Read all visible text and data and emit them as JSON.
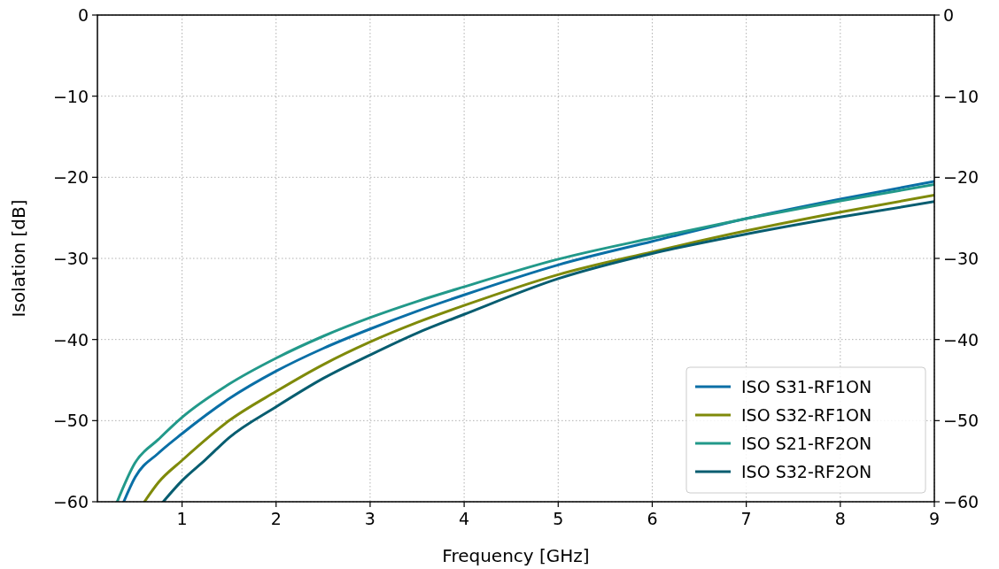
{
  "chart_data": {
    "type": "line",
    "xlabel": "Frequency [GHz]",
    "ylabel": "Isolation [dB]",
    "xlim": [
      0.1,
      9
    ],
    "xticks": [
      1,
      2,
      3,
      4,
      5,
      6,
      7,
      8,
      9
    ],
    "ylim": [
      -60,
      0
    ],
    "yticks": [
      -60,
      -50,
      -40,
      -30,
      -20,
      -10,
      0
    ],
    "y2lim": [
      -60,
      0
    ],
    "y2ticks": [
      -60,
      -50,
      -40,
      -30,
      -20,
      -10,
      0
    ],
    "grid": true,
    "legend": "bottom right",
    "line_style": "solid",
    "series": [
      {
        "name": "ISO S31-RF1ON",
        "color": "#0a6fa6",
        "x": [
          0.38,
          0.5,
          0.75,
          1,
          1.5,
          2,
          2.5,
          3,
          3.5,
          4,
          5,
          6,
          7,
          8,
          9
        ],
        "values": [
          -60,
          -57,
          -54,
          -51.6,
          -47.3,
          -43.9,
          -41.1,
          -38.7,
          -36.5,
          -34.5,
          -30.8,
          -27.9,
          -25.1,
          -22.7,
          -20.5
        ]
      },
      {
        "name": "ISO S32-RF1ON",
        "color": "#7f8a0a",
        "x": [
          0.6,
          0.75,
          1,
          1.5,
          2,
          2.5,
          3,
          3.5,
          4,
          5,
          6,
          7,
          8,
          9
        ],
        "values": [
          -60,
          -57.6,
          -54.9,
          -50,
          -46.4,
          -43.1,
          -40.3,
          -37.9,
          -35.8,
          -32,
          -29.2,
          -26.6,
          -24.3,
          -22.2
        ]
      },
      {
        "name": "ISO S21-RF2ON",
        "color": "#22998a",
        "x": [
          0.31,
          0.5,
          0.75,
          1,
          1.5,
          2,
          2.5,
          3,
          3.5,
          4,
          5,
          6,
          7,
          8,
          9
        ],
        "values": [
          -60,
          -55.2,
          -52.3,
          -49.6,
          -45.5,
          -42.3,
          -39.6,
          -37.3,
          -35.3,
          -33.5,
          -30.1,
          -27.5,
          -25.1,
          -22.9,
          -20.9
        ]
      },
      {
        "name": "ISO S32-RF2ON",
        "color": "#075d70",
        "x": [
          0.8,
          1,
          1.25,
          1.5,
          2,
          2.5,
          3,
          3.5,
          4,
          5,
          6,
          7,
          8,
          9
        ],
        "values": [
          -60,
          -57.4,
          -54.8,
          -52.1,
          -48.3,
          -44.8,
          -41.9,
          -39.2,
          -36.9,
          -32.5,
          -29.4,
          -27,
          -24.9,
          -23
        ]
      }
    ]
  }
}
